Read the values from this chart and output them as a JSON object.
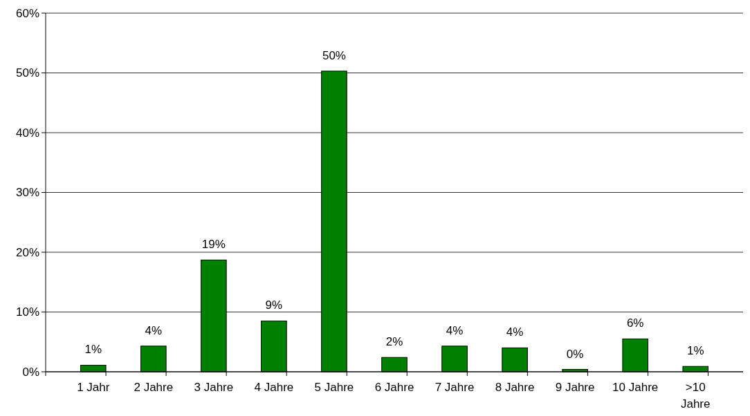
{
  "chart_data": {
    "type": "bar",
    "categories": [
      "1 Jahr",
      "2 Jahre",
      "3 Jahre",
      "4 Jahre",
      "5 Jahre",
      "6 Jahre",
      "7 Jahre",
      "8 Jahre",
      "9 Jahre",
      "10 Jahre",
      ">10 Jahre"
    ],
    "values": [
      1.1,
      4.3,
      18.7,
      8.5,
      50.3,
      2.4,
      4.3,
      4.0,
      0.4,
      5.5,
      0.9
    ],
    "value_labels": [
      "1%",
      "4%",
      "19%",
      "9%",
      "50%",
      "2%",
      "4%",
      "4%",
      "0%",
      "6%",
      "1%"
    ],
    "color": "#008000",
    "ylim": [
      0,
      60
    ],
    "yticks": [
      {
        "value": 0,
        "label": "0%"
      },
      {
        "value": 10,
        "label": "10%"
      },
      {
        "value": 20,
        "label": "20%"
      },
      {
        "value": 30,
        "label": "30%"
      },
      {
        "value": 40,
        "label": "40%"
      },
      {
        "value": 50,
        "label": "50%"
      },
      {
        "value": 60,
        "label": "60%"
      }
    ],
    "grid": "y"
  }
}
